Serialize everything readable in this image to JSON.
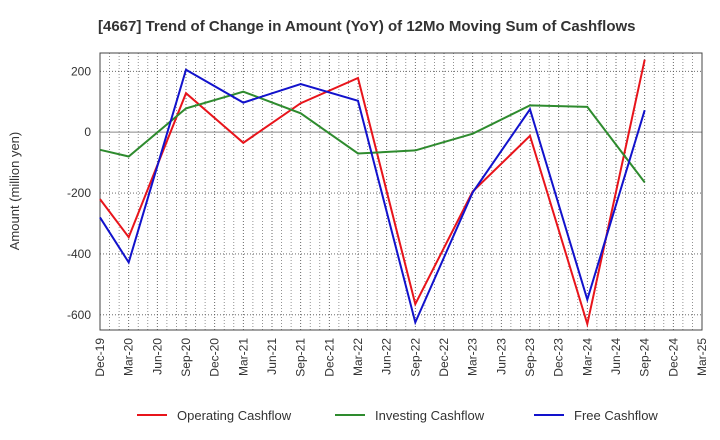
{
  "chart_data": {
    "type": "line",
    "title": "[4667]  Trend of Change in Amount (YoY) of 12Mo Moving Sum of Cashflows",
    "ylabel": "Amount (million yen)",
    "xlabel": "",
    "ylim": [
      -650,
      260
    ],
    "yticks": [
      200,
      0,
      -200,
      -400,
      -600
    ],
    "grid": true,
    "legend_position": "bottom",
    "categories": [
      "Dec-19",
      "Mar-20",
      "Jun-20",
      "Sep-20",
      "Dec-20",
      "Mar-21",
      "Jun-21",
      "Sep-21",
      "Dec-21",
      "Mar-22",
      "Jun-22",
      "Sep-22",
      "Dec-22",
      "Mar-23",
      "Jun-23",
      "Sep-23",
      "Dec-23",
      "Mar-24",
      "Jun-24",
      "Sep-24",
      "Dec-24",
      "Mar-25"
    ],
    "series": [
      {
        "name": "Operating Cashflow",
        "color": "#e8141b",
        "values": [
          -220,
          -345,
          null,
          128,
          null,
          -35,
          null,
          95,
          null,
          178,
          null,
          -565,
          null,
          -195,
          null,
          -12,
          null,
          -630,
          null,
          238,
          null,
          null
        ]
      },
      {
        "name": "Investing Cashflow",
        "color": "#2e8b2e",
        "values": [
          -58,
          -80,
          null,
          78,
          null,
          133,
          null,
          62,
          null,
          -70,
          null,
          -60,
          null,
          -5,
          null,
          88,
          null,
          83,
          null,
          -165,
          null,
          null
        ]
      },
      {
        "name": "Free Cashflow",
        "color": "#1212cc",
        "values": [
          -280,
          -428,
          null,
          205,
          null,
          97,
          null,
          158,
          null,
          103,
          null,
          -625,
          null,
          -198,
          null,
          75,
          null,
          -550,
          null,
          72,
          null,
          null
        ]
      }
    ]
  }
}
